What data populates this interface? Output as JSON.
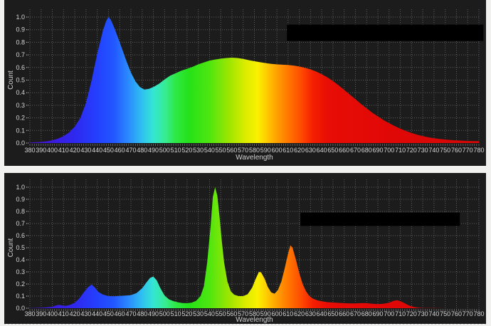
{
  "page": {
    "background": "#f1f1ef",
    "panel_background": "#1c1c1c"
  },
  "colors": {
    "panel_bg": "#1c1c1c",
    "grid": "#757575",
    "tick_text": "#d6d6d6",
    "axis_title_text": "#d0d0d0",
    "redaction": "#000000",
    "minor_tick": "#8a8a8a"
  },
  "spectrum_gradient": [
    [
      380,
      "#4613c6"
    ],
    [
      400,
      "#3c1ade"
    ],
    [
      420,
      "#2f28ee"
    ],
    [
      440,
      "#2440ff"
    ],
    [
      455,
      "#2257ff"
    ],
    [
      468,
      "#2b8cff"
    ],
    [
      480,
      "#2fc0f0"
    ],
    [
      490,
      "#34e6d2"
    ],
    [
      500,
      "#36ec96"
    ],
    [
      510,
      "#2ee845"
    ],
    [
      522,
      "#25e218"
    ],
    [
      540,
      "#4fe60f"
    ],
    [
      558,
      "#9fe600"
    ],
    [
      572,
      "#dcec00"
    ],
    [
      583,
      "#fbf000"
    ],
    [
      592,
      "#ffc600"
    ],
    [
      602,
      "#ff9800"
    ],
    [
      612,
      "#ff7000"
    ],
    [
      622,
      "#ff4a00"
    ],
    [
      632,
      "#f42000"
    ],
    [
      645,
      "#e80d05"
    ],
    [
      700,
      "#e00807"
    ],
    [
      780,
      "#d40807"
    ]
  ],
  "chart_data": [
    {
      "id": "top-spectrum",
      "type": "area",
      "title": "",
      "xlabel": "Wavelength",
      "ylabel": "Count",
      "xlim": [
        380,
        780
      ],
      "ylim": [
        0,
        1.0
      ],
      "grid": "dotted",
      "legend": "redacted (solid black box, upper right)",
      "redaction_box": {
        "x_nm": [
          609,
          784
        ],
        "y_value": [
          0.81,
          0.94
        ]
      },
      "x_ticks": [
        "380",
        "390",
        "400",
        "410",
        "420",
        "430",
        "440",
        "450",
        "460",
        "470",
        "480",
        "490",
        "500",
        "510",
        "520",
        "530",
        "540",
        "550",
        "560",
        "570",
        "580",
        "590",
        "600",
        "610",
        "620",
        "630",
        "640",
        "650",
        "660",
        "670",
        "680",
        "690",
        "700",
        "710",
        "720",
        "730",
        "740",
        "750",
        "760",
        "770",
        "780"
      ],
      "y_ticks": [
        "0.0",
        "0.1",
        "0.2",
        "0.3",
        "0.4",
        "0.5",
        "0.6",
        "0.7",
        "0.8",
        "0.9",
        "1.0"
      ],
      "points": [
        [
          380,
          0.004
        ],
        [
          385,
          0.006
        ],
        [
          390,
          0.009
        ],
        [
          395,
          0.014
        ],
        [
          400,
          0.022
        ],
        [
          405,
          0.035
        ],
        [
          410,
          0.055
        ],
        [
          415,
          0.085
        ],
        [
          420,
          0.13
        ],
        [
          425,
          0.2
        ],
        [
          430,
          0.32
        ],
        [
          435,
          0.5
        ],
        [
          440,
          0.71
        ],
        [
          445,
          0.89
        ],
        [
          448,
          0.97
        ],
        [
          450,
          1.0
        ],
        [
          452,
          0.98
        ],
        [
          455,
          0.92
        ],
        [
          458,
          0.85
        ],
        [
          462,
          0.75
        ],
        [
          466,
          0.65
        ],
        [
          470,
          0.56
        ],
        [
          474,
          0.49
        ],
        [
          478,
          0.445
        ],
        [
          482,
          0.425
        ],
        [
          486,
          0.43
        ],
        [
          490,
          0.445
        ],
        [
          495,
          0.47
        ],
        [
          500,
          0.505
        ],
        [
          505,
          0.535
        ],
        [
          510,
          0.555
        ],
        [
          515,
          0.575
        ],
        [
          520,
          0.59
        ],
        [
          525,
          0.605
        ],
        [
          530,
          0.625
        ],
        [
          535,
          0.64
        ],
        [
          540,
          0.655
        ],
        [
          545,
          0.663
        ],
        [
          550,
          0.67
        ],
        [
          555,
          0.675
        ],
        [
          560,
          0.678
        ],
        [
          565,
          0.675
        ],
        [
          570,
          0.668
        ],
        [
          575,
          0.658
        ],
        [
          580,
          0.65
        ],
        [
          585,
          0.642
        ],
        [
          590,
          0.635
        ],
        [
          595,
          0.628
        ],
        [
          600,
          0.625
        ],
        [
          605,
          0.622
        ],
        [
          610,
          0.62
        ],
        [
          615,
          0.615
        ],
        [
          620,
          0.608
        ],
        [
          625,
          0.598
        ],
        [
          630,
          0.585
        ],
        [
          635,
          0.568
        ],
        [
          640,
          0.547
        ],
        [
          645,
          0.522
        ],
        [
          650,
          0.492
        ],
        [
          655,
          0.458
        ],
        [
          660,
          0.422
        ],
        [
          665,
          0.385
        ],
        [
          670,
          0.348
        ],
        [
          675,
          0.31
        ],
        [
          680,
          0.275
        ],
        [
          685,
          0.242
        ],
        [
          690,
          0.212
        ],
        [
          695,
          0.183
        ],
        [
          700,
          0.158
        ],
        [
          705,
          0.135
        ],
        [
          710,
          0.114
        ],
        [
          715,
          0.096
        ],
        [
          720,
          0.08
        ],
        [
          725,
          0.066
        ],
        [
          730,
          0.055
        ],
        [
          735,
          0.046
        ],
        [
          740,
          0.038
        ],
        [
          745,
          0.032
        ],
        [
          750,
          0.028
        ],
        [
          755,
          0.024
        ],
        [
          760,
          0.021
        ],
        [
          765,
          0.019
        ],
        [
          770,
          0.017
        ],
        [
          775,
          0.016
        ],
        [
          780,
          0.015
        ]
      ]
    },
    {
      "id": "bottom-spectrum",
      "type": "area",
      "title": "",
      "xlabel": "Wavelength",
      "ylabel": "Count",
      "xlim": [
        380,
        780
      ],
      "ylim": [
        0,
        1.0
      ],
      "grid": "dotted",
      "legend": "redacted (solid black box, upper right)",
      "redaction_box": {
        "x_nm": [
          621,
          763
        ],
        "y_value": [
          0.68,
          0.79
        ]
      },
      "x_ticks": [
        "380",
        "390",
        "400",
        "410",
        "420",
        "430",
        "440",
        "450",
        "460",
        "470",
        "480",
        "490",
        "500",
        "510",
        "520",
        "530",
        "540",
        "550",
        "560",
        "570",
        "580",
        "590",
        "600",
        "610",
        "620",
        "630",
        "640",
        "650",
        "660",
        "670",
        "680",
        "690",
        "700",
        "710",
        "720",
        "730",
        "740",
        "750",
        "760",
        "770",
        "780"
      ],
      "y_ticks": [
        "0.0",
        "0.1",
        "0.2",
        "0.3",
        "0.4",
        "0.5",
        "0.6",
        "0.7",
        "0.8",
        "0.9",
        "1.0"
      ],
      "points": [
        [
          380,
          0.002
        ],
        [
          390,
          0.004
        ],
        [
          395,
          0.007
        ],
        [
          400,
          0.012
        ],
        [
          403,
          0.022
        ],
        [
          406,
          0.028
        ],
        [
          409,
          0.022
        ],
        [
          412,
          0.02
        ],
        [
          416,
          0.028
        ],
        [
          420,
          0.045
        ],
        [
          424,
          0.08
        ],
        [
          428,
          0.13
        ],
        [
          432,
          0.175
        ],
        [
          435,
          0.195
        ],
        [
          438,
          0.17
        ],
        [
          441,
          0.135
        ],
        [
          445,
          0.113
        ],
        [
          450,
          0.1
        ],
        [
          455,
          0.098
        ],
        [
          460,
          0.102
        ],
        [
          465,
          0.104
        ],
        [
          470,
          0.108
        ],
        [
          475,
          0.125
        ],
        [
          480,
          0.165
        ],
        [
          484,
          0.215
        ],
        [
          487,
          0.25
        ],
        [
          490,
          0.262
        ],
        [
          493,
          0.23
        ],
        [
          496,
          0.17
        ],
        [
          500,
          0.105
        ],
        [
          504,
          0.073
        ],
        [
          508,
          0.058
        ],
        [
          512,
          0.048
        ],
        [
          516,
          0.043
        ],
        [
          520,
          0.042
        ],
        [
          524,
          0.046
        ],
        [
          528,
          0.06
        ],
        [
          532,
          0.1
        ],
        [
          535,
          0.18
        ],
        [
          538,
          0.38
        ],
        [
          541,
          0.68
        ],
        [
          543,
          0.92
        ],
        [
          545,
          1.0
        ],
        [
          547,
          0.93
        ],
        [
          549,
          0.75
        ],
        [
          551,
          0.55
        ],
        [
          553,
          0.38
        ],
        [
          556,
          0.22
        ],
        [
          559,
          0.14
        ],
        [
          562,
          0.112
        ],
        [
          566,
          0.1
        ],
        [
          570,
          0.1
        ],
        [
          574,
          0.115
        ],
        [
          578,
          0.17
        ],
        [
          581,
          0.24
        ],
        [
          584,
          0.3
        ],
        [
          586,
          0.295
        ],
        [
          589,
          0.245
        ],
        [
          592,
          0.175
        ],
        [
          595,
          0.13
        ],
        [
          598,
          0.12
        ],
        [
          601,
          0.15
        ],
        [
          604,
          0.22
        ],
        [
          607,
          0.33
        ],
        [
          610,
          0.45
        ],
        [
          612,
          0.52
        ],
        [
          614,
          0.5
        ],
        [
          617,
          0.4
        ],
        [
          620,
          0.29
        ],
        [
          623,
          0.2
        ],
        [
          626,
          0.14
        ],
        [
          629,
          0.1
        ],
        [
          632,
          0.08
        ],
        [
          636,
          0.065
        ],
        [
          640,
          0.057
        ],
        [
          645,
          0.05
        ],
        [
          650,
          0.047
        ],
        [
          655,
          0.044
        ],
        [
          660,
          0.042
        ],
        [
          665,
          0.04
        ],
        [
          670,
          0.04
        ],
        [
          675,
          0.042
        ],
        [
          680,
          0.042
        ],
        [
          685,
          0.037
        ],
        [
          690,
          0.034
        ],
        [
          695,
          0.037
        ],
        [
          700,
          0.045
        ],
        [
          704,
          0.06
        ],
        [
          707,
          0.066
        ],
        [
          710,
          0.058
        ],
        [
          713,
          0.045
        ],
        [
          716,
          0.03
        ],
        [
          719,
          0.018
        ],
        [
          722,
          0.01
        ],
        [
          726,
          0.005
        ],
        [
          730,
          0.002
        ],
        [
          740,
          0.001
        ],
        [
          750,
          0.0
        ],
        [
          760,
          0.0
        ],
        [
          770,
          0.0
        ],
        [
          780,
          0.0
        ]
      ]
    }
  ]
}
